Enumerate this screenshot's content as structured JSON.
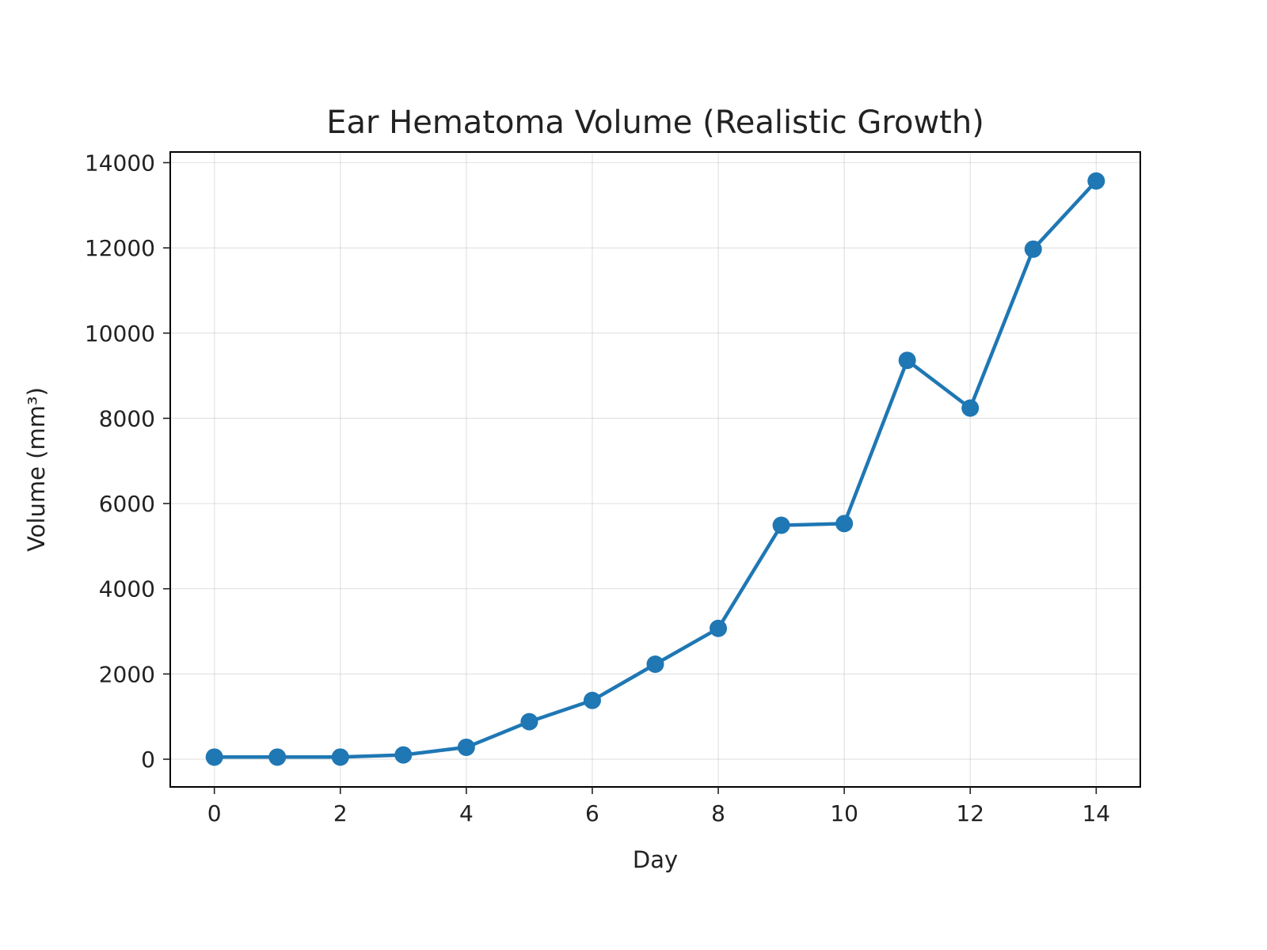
{
  "chart_data": {
    "type": "line",
    "title": "Ear Hematoma Volume (Realistic Growth)",
    "xlabel": "Day",
    "ylabel": "Volume (mm³)",
    "xlim": [
      -0.7,
      14.7
    ],
    "ylim": [
      -650,
      14250
    ],
    "xticks": [
      0,
      2,
      4,
      6,
      8,
      10,
      12,
      14
    ],
    "xtick_labels": [
      "0",
      "2",
      "4",
      "6",
      "8",
      "10",
      "12",
      "14"
    ],
    "yticks": [
      0,
      2000,
      4000,
      6000,
      8000,
      10000,
      12000,
      14000
    ],
    "ytick_labels": [
      "0",
      "2000",
      "4000",
      "6000",
      "8000",
      "10000",
      "12000",
      "14000"
    ],
    "grid": true,
    "series": [
      {
        "name": "Volume",
        "color": "#1f77b4",
        "marker": "circle",
        "x": [
          0,
          1,
          2,
          3,
          4,
          5,
          6,
          7,
          8,
          9,
          10,
          11,
          12,
          13,
          14
        ],
        "values": [
          50,
          50,
          50,
          100,
          280,
          880,
          1380,
          2230,
          3070,
          5490,
          5530,
          9360,
          8240,
          11970,
          13570
        ]
      }
    ]
  }
}
